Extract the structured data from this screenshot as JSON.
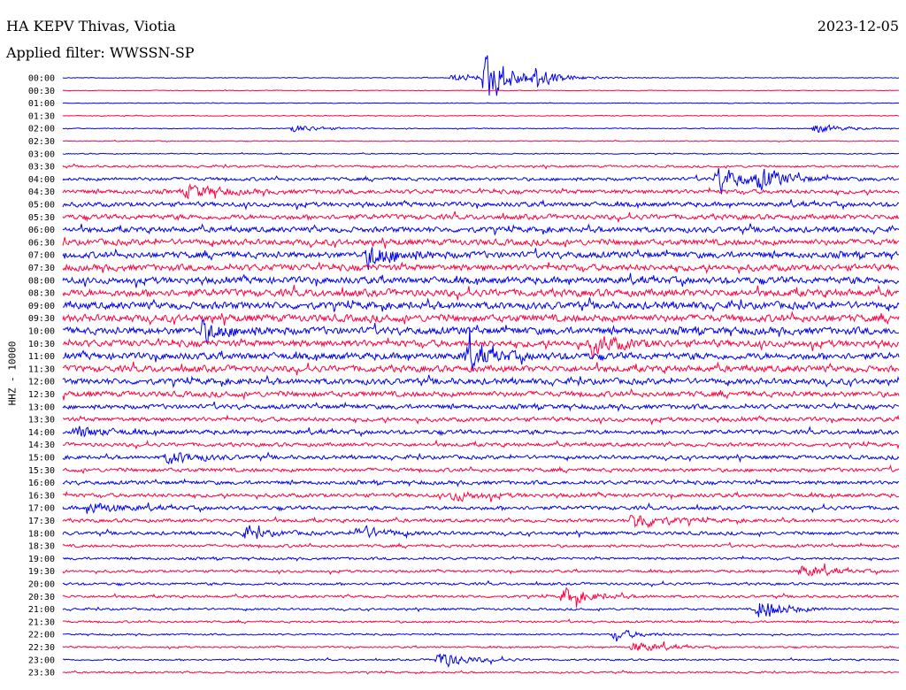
{
  "header": {
    "station": "HA KEPV Thivas, Viotia",
    "date": "2023-12-05",
    "filter": "Applied filter: WWSSN-SP"
  },
  "chart_data": {
    "type": "line",
    "channel_label": "HHZ - 10000",
    "row_labels": [
      "00:00",
      "00:30",
      "01:00",
      "01:30",
      "02:00",
      "02:30",
      "03:00",
      "03:30",
      "04:00",
      "04:30",
      "05:00",
      "05:30",
      "06:00",
      "06:30",
      "07:00",
      "07:30",
      "08:00",
      "08:30",
      "09:00",
      "09:30",
      "10:00",
      "10:30",
      "11:00",
      "11:30",
      "12:00",
      "12:30",
      "13:00",
      "13:30",
      "14:00",
      "14:30",
      "15:00",
      "15:30",
      "16:00",
      "16:30",
      "17:00",
      "17:30",
      "18:00",
      "18:30",
      "19:00",
      "19:30",
      "20:00",
      "20:30",
      "21:00",
      "21:30",
      "22:00",
      "22:30",
      "23:00",
      "23:30"
    ],
    "row_minutes": 30,
    "trace_colors": [
      "#0000ee",
      "#ff0040"
    ],
    "noise_level": [
      0.8,
      0.8,
      0.8,
      1.0,
      1.0,
      1.0,
      1.2,
      2.5,
      4.0,
      5.0,
      5.5,
      6.0,
      6.5,
      7.0,
      7.5,
      7.5,
      8.0,
      8.5,
      8.5,
      8.5,
      8.5,
      8.0,
      8.0,
      7.5,
      7.0,
      6.5,
      5.5,
      5.0,
      5.0,
      4.5,
      4.5,
      4.5,
      4.5,
      4.5,
      4.5,
      4.0,
      4.0,
      3.5,
      3.0,
      3.0,
      3.0,
      3.0,
      2.5,
      2.5,
      2.0,
      2.0,
      2.0,
      2.0
    ],
    "events": [
      {
        "row": 0,
        "minute": 14.0,
        "amp": 9
      },
      {
        "row": 0,
        "minute": 15.2,
        "amp": 65
      },
      {
        "row": 0,
        "minute": 16.9,
        "amp": 18
      },
      {
        "row": 4,
        "minute": 8.3,
        "amp": 10
      },
      {
        "row": 4,
        "minute": 27.0,
        "amp": 12
      },
      {
        "row": 8,
        "minute": 23.5,
        "amp": 30
      },
      {
        "row": 8,
        "minute": 25.0,
        "amp": 22
      },
      {
        "row": 9,
        "minute": 4.5,
        "amp": 18
      },
      {
        "row": 14,
        "minute": 11.0,
        "amp": 30
      },
      {
        "row": 20,
        "minute": 5.0,
        "amp": 24
      },
      {
        "row": 21,
        "minute": 19.0,
        "amp": 22
      },
      {
        "row": 22,
        "minute": 14.5,
        "amp": 26
      },
      {
        "row": 28,
        "minute": 0.5,
        "amp": 14
      },
      {
        "row": 30,
        "minute": 3.8,
        "amp": 16
      },
      {
        "row": 33,
        "minute": 14.0,
        "amp": 12
      },
      {
        "row": 34,
        "minute": 1.0,
        "amp": 14
      },
      {
        "row": 35,
        "minute": 20.5,
        "amp": 22
      },
      {
        "row": 36,
        "minute": 6.5,
        "amp": 12
      },
      {
        "row": 36,
        "minute": 10.6,
        "amp": 16
      },
      {
        "row": 39,
        "minute": 26.5,
        "amp": 14
      },
      {
        "row": 41,
        "minute": 18.0,
        "amp": 20
      },
      {
        "row": 42,
        "minute": 25.0,
        "amp": 26
      },
      {
        "row": 44,
        "minute": 19.8,
        "amp": 12
      },
      {
        "row": 45,
        "minute": 20.5,
        "amp": 14
      },
      {
        "row": 46,
        "minute": 13.5,
        "amp": 22
      }
    ]
  }
}
